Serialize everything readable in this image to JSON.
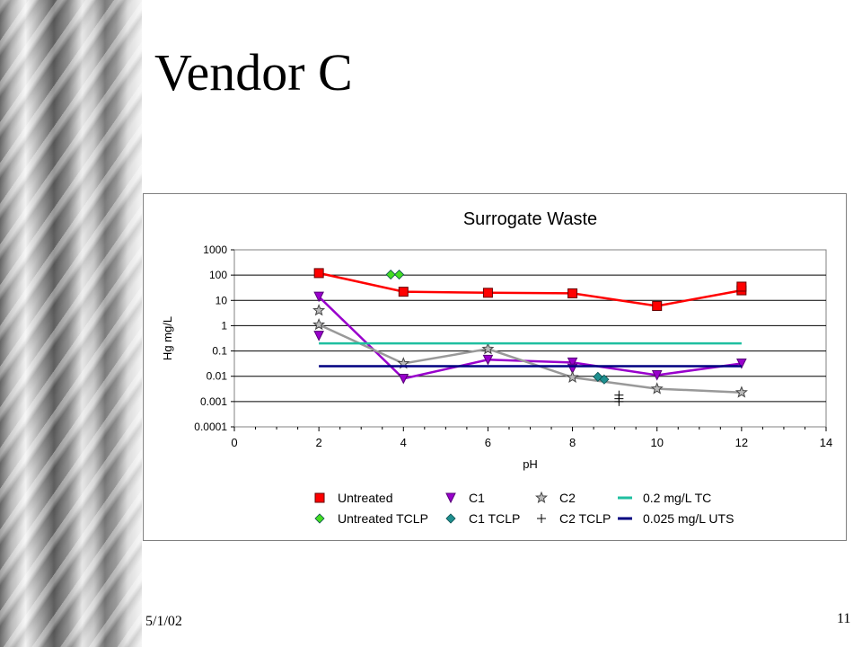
{
  "slide": {
    "title": "Vendor C",
    "date": "5/1/02",
    "page_number": "11"
  },
  "chart_data": {
    "type": "scatter",
    "title": "Surrogate Waste",
    "xlabel": "pH",
    "ylabel": "Hg mg/L",
    "xlim": [
      0,
      14
    ],
    "ylim": [
      0.0001,
      1000
    ],
    "yscale": "log",
    "x_ticks": [
      "0",
      "2",
      "4",
      "6",
      "8",
      "10",
      "12",
      "14"
    ],
    "y_ticks": [
      "0.0001",
      "0.001",
      "0.01",
      "0.1",
      "1",
      "10",
      "100",
      "1000"
    ],
    "grid": "horizontal",
    "legend_position": "bottom",
    "series": [
      {
        "name": "Untreated",
        "marker": "square",
        "color": "#ff0000",
        "line": true,
        "x": [
          2,
          4,
          6,
          8,
          10,
          12
        ],
        "y": [
          120,
          22,
          20,
          19,
          6,
          25
        ],
        "extra_points": [
          [
            12,
            35
          ]
        ]
      },
      {
        "name": "C1",
        "marker": "triangle-down",
        "color": "#9900cc",
        "line": true,
        "x": [
          2,
          4,
          6,
          8,
          10,
          12
        ],
        "y": [
          14,
          0.008,
          0.045,
          0.035,
          0.011,
          0.032
        ],
        "extra_points": [
          [
            2,
            0.4
          ],
          [
            8,
            0.02
          ]
        ]
      },
      {
        "name": "C2",
        "marker": "star",
        "color": "#999999",
        "line": true,
        "x": [
          2,
          4,
          6,
          8,
          10,
          12
        ],
        "y": [
          1.1,
          0.032,
          0.12,
          0.009,
          0.0032,
          0.0023
        ],
        "extra_points": [
          [
            2,
            4
          ]
        ]
      },
      {
        "name": "0.2 mg/L TC",
        "marker": "none",
        "color": "#1fbfa0",
        "line": true,
        "x": [
          2,
          12
        ],
        "y": [
          0.2,
          0.2
        ]
      },
      {
        "name": "Untreated TCLP",
        "marker": "diamond",
        "color": "#44dd22",
        "line": false,
        "x": [
          3.7,
          3.9
        ],
        "y": [
          105,
          105
        ]
      },
      {
        "name": "C1 TCLP",
        "marker": "diamond",
        "color": "#1f8f8f",
        "line": false,
        "x": [
          8.6,
          8.75
        ],
        "y": [
          0.0095,
          0.0075
        ]
      },
      {
        "name": "C2 TCLP",
        "marker": "plus",
        "color": "#000000",
        "line": false,
        "x": [
          9.1,
          9.1,
          9.1
        ],
        "y": [
          0.0018,
          0.0013,
          0.001
        ]
      },
      {
        "name": "0.025 mg/L UTS",
        "marker": "none",
        "color": "#000080",
        "line": true,
        "x": [
          2,
          12
        ],
        "y": [
          0.025,
          0.025
        ]
      }
    ]
  }
}
